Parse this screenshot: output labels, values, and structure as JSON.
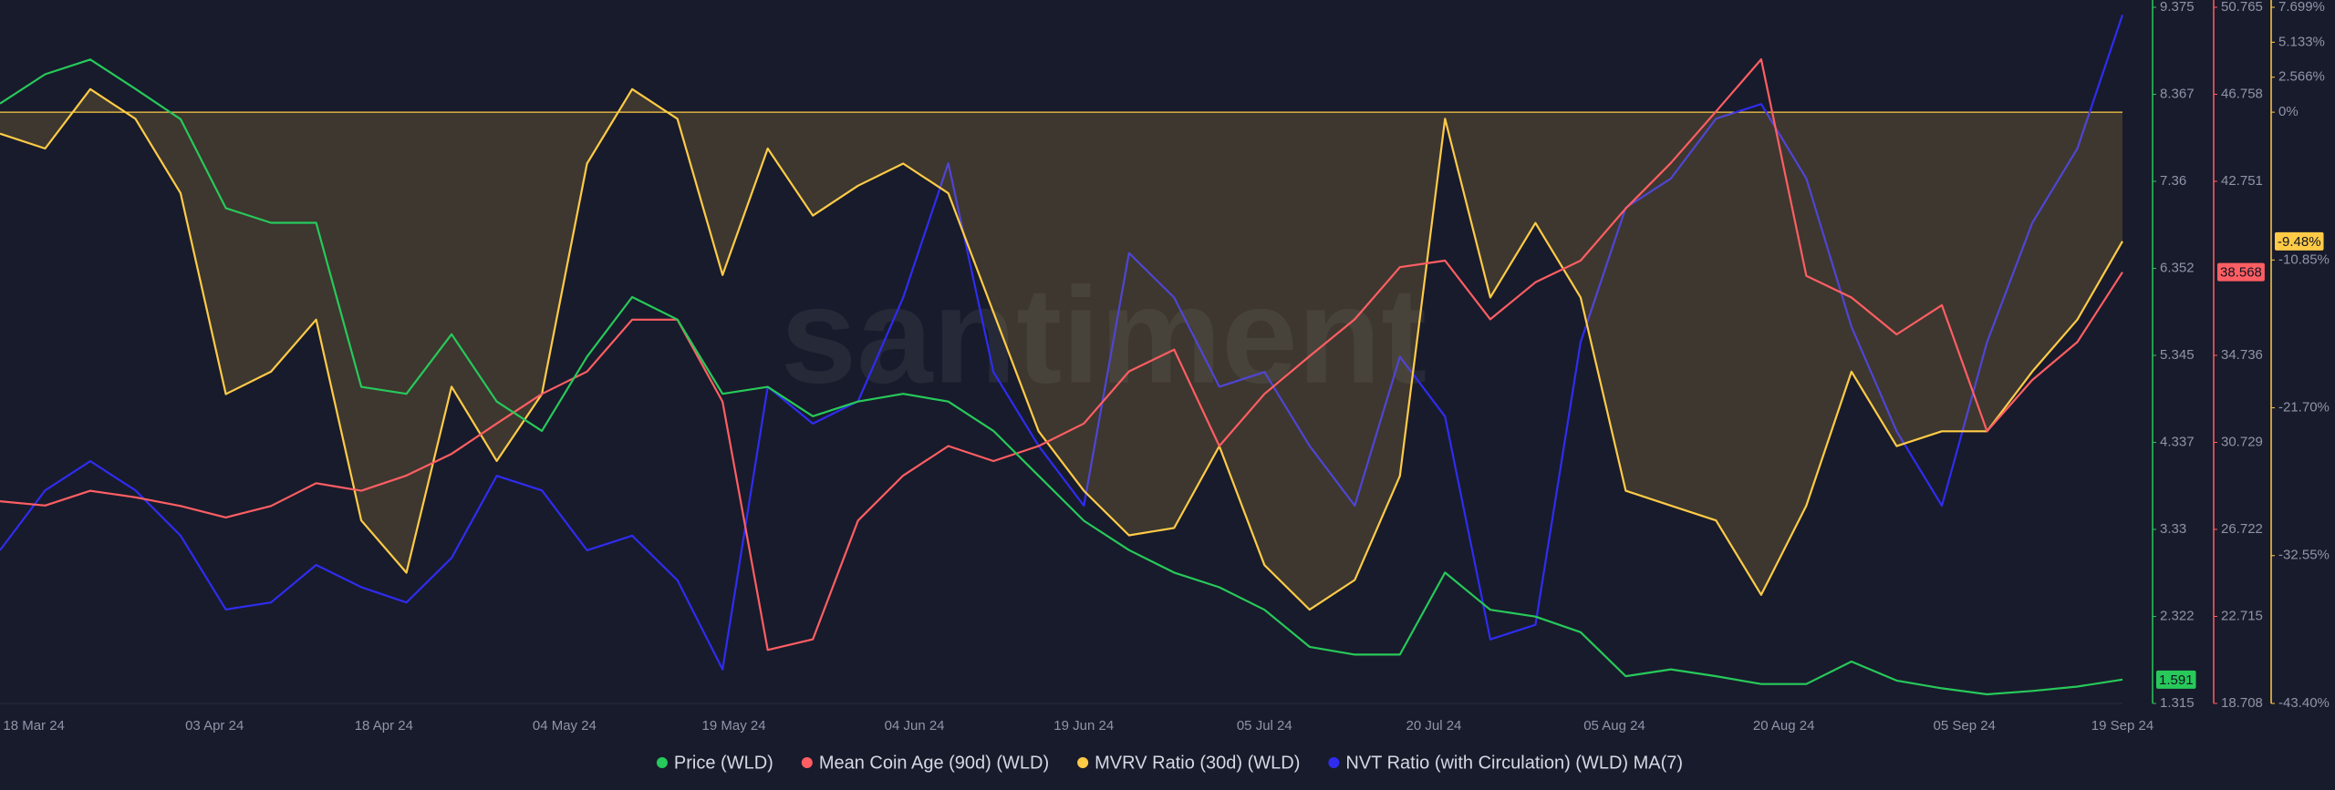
{
  "chart_data": {
    "type": "line",
    "watermark": "santiment",
    "x": [
      "15 Mar 24",
      "19 Mar 24",
      "23 Mar 24",
      "27 Mar 24",
      "31 Mar 24",
      "04 Apr 24",
      "08 Apr 24",
      "12 Apr 24",
      "16 Apr 24",
      "20 Apr 24",
      "24 Apr 24",
      "28 Apr 24",
      "02 May 24",
      "06 May 24",
      "10 May 24",
      "14 May 24",
      "18 May 24",
      "22 May 24",
      "26 May 24",
      "30 May 24",
      "03 Jun 24",
      "07 Jun 24",
      "11 Jun 24",
      "15 Jun 24",
      "19 Jun 24",
      "23 Jun 24",
      "27 Jun 24",
      "01 Jul 24",
      "05 Jul 24",
      "09 Jul 24",
      "13 Jul 24",
      "17 Jul 24",
      "21 Jul 24",
      "25 Jul 24",
      "29 Jul 24",
      "02 Aug 24",
      "06 Aug 24",
      "10 Aug 24",
      "14 Aug 24",
      "18 Aug 24",
      "22 Aug 24",
      "26 Aug 24",
      "30 Aug 24",
      "03 Sep 24",
      "07 Sep 24",
      "11 Sep 24",
      "15 Sep 24",
      "19 Sep 24"
    ],
    "xlim": [
      "15 Mar 24",
      "19 Sep 24"
    ],
    "xticks": [
      "18 Mar 24",
      "03 Apr 24",
      "18 Apr 24",
      "04 May 24",
      "19 May 24",
      "04 Jun 24",
      "19 Jun 24",
      "05 Jul 24",
      "20 Jul 24",
      "05 Aug 24",
      "20 Aug 24",
      "05 Sep 24",
      "19 Sep 24"
    ],
    "series": [
      {
        "name": "Price (WLD)",
        "color": "#27c95a",
        "axis": "y",
        "end_label": "1.591",
        "values": [
          8.26,
          8.6,
          8.77,
          8.43,
          8.08,
          7.05,
          6.88,
          6.88,
          4.98,
          4.9,
          5.59,
          4.81,
          4.47,
          5.33,
          6.02,
          5.76,
          4.9,
          4.98,
          4.64,
          4.81,
          4.9,
          4.81,
          4.47,
          3.95,
          3.43,
          3.09,
          2.83,
          2.66,
          2.4,
          1.97,
          1.88,
          1.88,
          2.83,
          2.4,
          2.32,
          2.14,
          1.63,
          1.71,
          1.63,
          1.54,
          1.54,
          1.8,
          1.58,
          1.49,
          1.42,
          1.46,
          1.51,
          1.591
        ]
      },
      {
        "name": "Mean Coin Age (90d) (WLD)",
        "color": "#ff5e63",
        "axis": "y2",
        "end_label": "38.568",
        "values": [
          28.02,
          27.82,
          28.5,
          28.2,
          27.8,
          27.27,
          27.8,
          28.85,
          28.5,
          29.2,
          30.2,
          31.6,
          32.96,
          33.99,
          36.38,
          36.38,
          32.6,
          21.17,
          21.66,
          27.13,
          29.2,
          30.56,
          29.87,
          30.56,
          31.6,
          34.0,
          35.0,
          30.56,
          32.96,
          34.7,
          36.4,
          38.8,
          39.1,
          36.4,
          38.1,
          39.1,
          41.5,
          43.6,
          45.97,
          48.37,
          38.4,
          37.4,
          35.7,
          37.05,
          31.24,
          33.6,
          35.35,
          38.568
        ]
      },
      {
        "name": "MVRV Ratio (30d) (WLD)",
        "color": "#ffcb47",
        "axis": "y3",
        "area": true,
        "end_label": "-9.48%",
        "values": [
          -1.58,
          -2.67,
          1.69,
          -0.49,
          -5.95,
          -20.69,
          -19.05,
          -15.23,
          -29.97,
          -33.8,
          -20.15,
          -25.6,
          -20.69,
          -3.77,
          1.69,
          -0.49,
          -11.95,
          -2.67,
          -7.59,
          -5.4,
          -3.77,
          -5.95,
          -14.7,
          -23.42,
          -27.79,
          -31.06,
          -30.52,
          -24.51,
          -33.25,
          -36.52,
          -34.34,
          -26.7,
          -0.49,
          -13.6,
          -8.13,
          -13.6,
          -27.79,
          -28.88,
          -29.97,
          -35.43,
          -28.88,
          -19.05,
          -24.51,
          -23.42,
          -23.42,
          -19.05,
          -15.23,
          -9.48
        ]
      },
      {
        "name": "NVT Ratio (with Circulation) (WLD) MA(7)",
        "color": "#2f2cf0",
        "axis": "y4",
        "values": [
          22,
          30.6,
          34.8,
          30.6,
          24.1,
          13.5,
          14.5,
          19.9,
          16.7,
          14.5,
          20.9,
          32.7,
          30.6,
          22,
          24.1,
          17.7,
          4.9,
          45.5,
          40.2,
          43.4,
          58.3,
          77.6,
          47.6,
          37,
          28.4,
          64.7,
          58.3,
          45.5,
          47.6,
          37,
          28.4,
          49.8,
          41.2,
          9.2,
          11.3,
          51.9,
          71.2,
          75.4,
          84,
          86.1,
          75.4,
          54.1,
          39.1,
          28.4,
          51.9,
          69,
          79.7,
          98.9
        ]
      }
    ],
    "ylim": [
      1.315,
      9.375
    ],
    "yticks": [
      9.375,
      8.367,
      7.36,
      6.352,
      5.345,
      4.337,
      3.33,
      2.322,
      1.315
    ],
    "y2lim": [
      18.708,
      50.765
    ],
    "y2ticks": [
      50.765,
      46.758,
      42.751,
      34.736,
      30.729,
      26.722,
      22.715,
      18.708
    ],
    "y3lim": [
      -43.4,
      7.699
    ],
    "y3ticks": [
      {
        "value": 7.699,
        "label": "7.699%"
      },
      {
        "value": 5.133,
        "label": "5.133%"
      },
      {
        "value": 2.566,
        "label": "2.566%"
      },
      {
        "value": 0,
        "label": "0%"
      },
      {
        "value": -10.85,
        "label": "-10.85%"
      },
      {
        "value": -21.7,
        "label": "-21.70%"
      },
      {
        "value": -32.55,
        "label": "-32.55%"
      },
      {
        "value": -43.4,
        "label": "-43.40%"
      }
    ],
    "y4lim": [
      0,
      100
    ]
  }
}
